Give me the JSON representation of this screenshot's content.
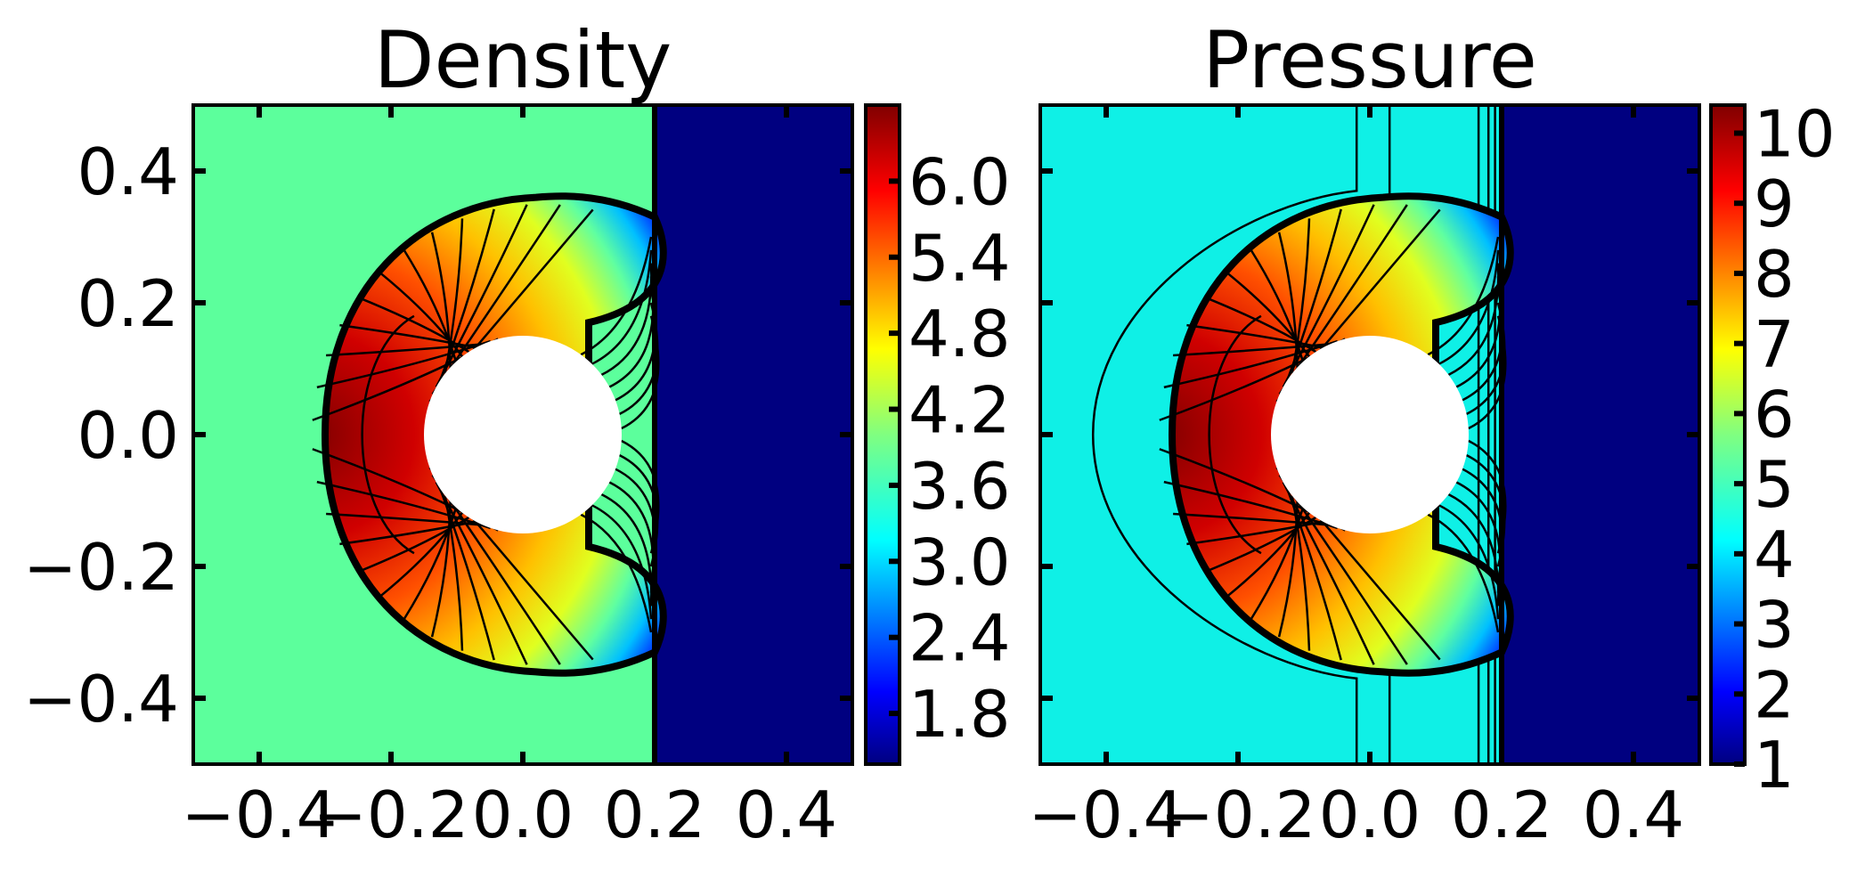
{
  "colors": {
    "post_shock_density": "#5cff9c",
    "post_shock_pressure": "#0ff0e6",
    "pre_shock": "#000080",
    "cylinder": "#ffffff",
    "jet_colormap": [
      "#000080",
      "#0000ff",
      "#0080ff",
      "#00ffff",
      "#80ff80",
      "#ffff00",
      "#ff8000",
      "#ff0000",
      "#800000"
    ]
  },
  "chart_data": [
    {
      "type": "heatmap",
      "title": "Density",
      "xlim": [
        -0.5,
        0.5
      ],
      "ylim": [
        -0.5,
        0.5
      ],
      "x_ticks": [
        "−0.4",
        "−0.2",
        "0.0",
        "0.2",
        "0.4"
      ],
      "x_tick_values": [
        -0.4,
        -0.2,
        0.0,
        0.2,
        0.4
      ],
      "y_ticks": [
        "0.4",
        "0.2",
        "0.0",
        "−0.2",
        "−0.4"
      ],
      "y_tick_values": [
        0.4,
        0.2,
        0.0,
        -0.2,
        -0.4
      ],
      "colorbar": {
        "range": [
          1.4,
          6.6
        ],
        "ticks": [
          "6.0",
          "5.4",
          "4.8",
          "4.2",
          "3.6",
          "3.0",
          "2.4",
          "1.8"
        ],
        "tick_values": [
          6.0,
          5.4,
          4.8,
          4.2,
          3.6,
          3.0,
          2.4,
          1.8
        ]
      },
      "field": {
        "ambient_value": 3.8,
        "pre_shock_value": 1.4,
        "stagnation_value": 6.6,
        "shock_x": 0.2,
        "cylinder_center": [
          0.0,
          0.0
        ],
        "cylinder_radius": 0.15
      }
    },
    {
      "type": "heatmap",
      "title": "Pressure",
      "xlim": [
        -0.5,
        0.5
      ],
      "ylim": [
        -0.5,
        0.5
      ],
      "x_ticks": [
        "−0.4",
        "−0.2",
        "0.0",
        "0.2",
        "0.4"
      ],
      "x_tick_values": [
        -0.4,
        -0.2,
        0.0,
        0.2,
        0.4
      ],
      "y_ticks": [],
      "y_tick_values": [
        0.4,
        0.2,
        0.0,
        -0.2,
        -0.4
      ],
      "colorbar": {
        "range": [
          1,
          10.4
        ],
        "ticks": [
          "10",
          "9",
          "8",
          "7",
          "6",
          "5",
          "4",
          "3",
          "2",
          "1"
        ],
        "tick_values": [
          10,
          9,
          8,
          7,
          6,
          5,
          4,
          3,
          2,
          1
        ]
      },
      "field": {
        "ambient_value": 4.6,
        "pre_shock_value": 1.0,
        "stagnation_value": 10.3,
        "shock_x": 0.2,
        "cylinder_center": [
          0.0,
          0.0
        ],
        "cylinder_radius": 0.15
      }
    }
  ]
}
